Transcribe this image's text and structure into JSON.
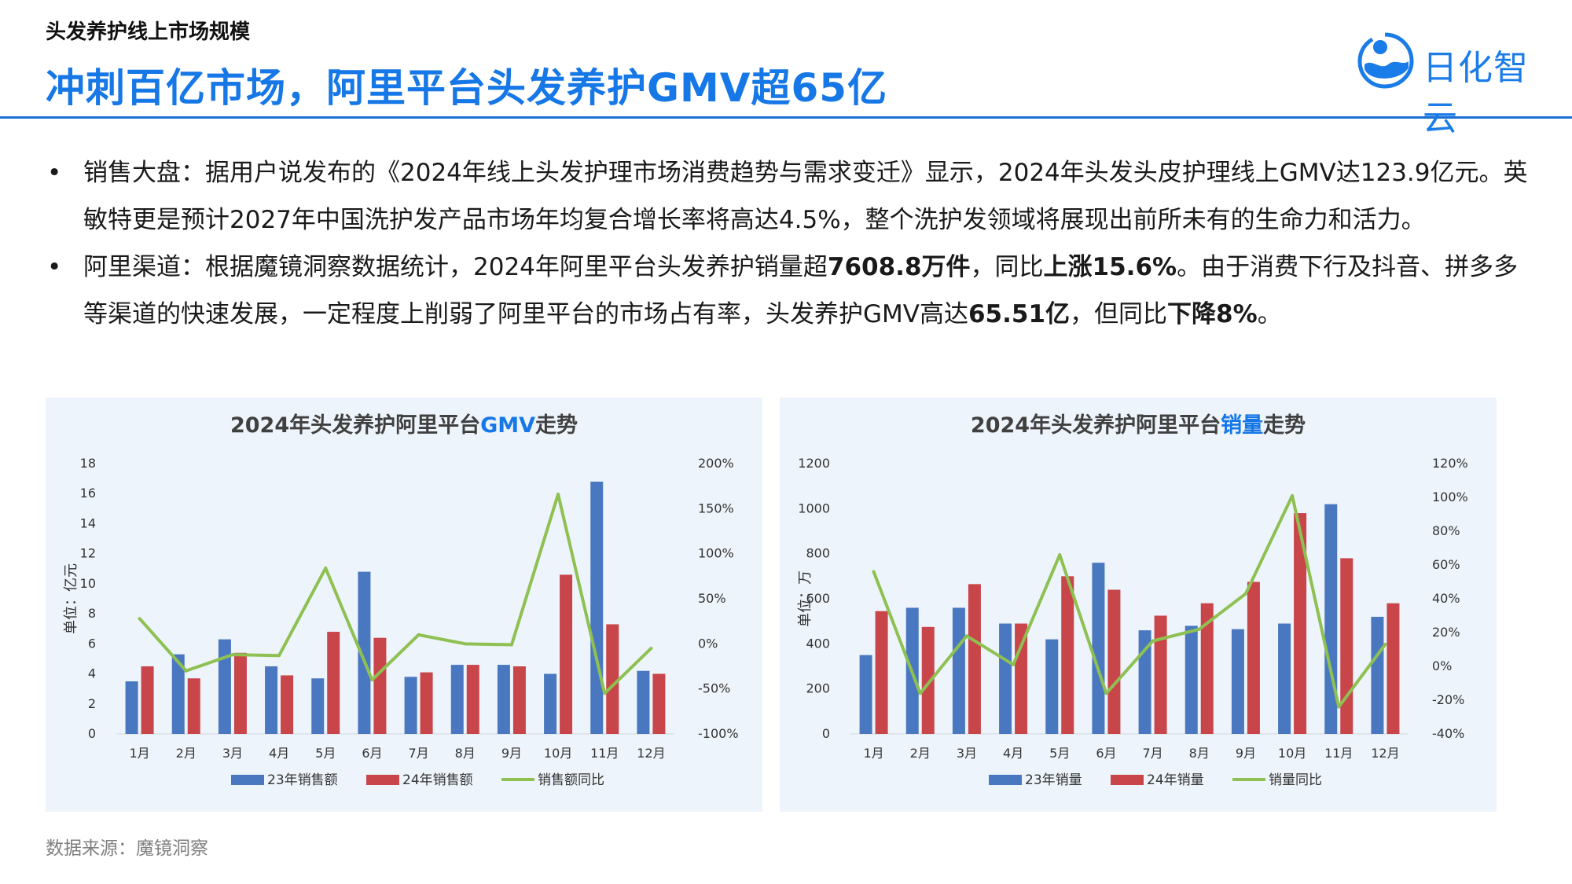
{
  "header": {
    "section_title": "头发养护线上市场规模",
    "main_title": "冲刺百亿市场，阿里平台头发养护GMV超65亿",
    "logo_text": "日化智云"
  },
  "bullets": [
    {
      "marker": "•",
      "segments": [
        {
          "text": "销售大盘：据用户说发布的《2024年线上头发护理市场消费趋势与需求变迁》显示，2024年头发头皮护理线上GMV达123.9亿元。英敏特更是预计2027年中国洗护发产品市场年均复合增长率将高达4.5%，整个洗护发领域将展现出前所未有的生命力和活力。",
          "bold": false
        }
      ]
    },
    {
      "marker": "•",
      "segments": [
        {
          "text": "阿里渠道：根据魔镜洞察数据统计，2024年阿里平台头发养护销量超",
          "bold": false
        },
        {
          "text": "7608.8万件",
          "bold": true
        },
        {
          "text": "，同比",
          "bold": false
        },
        {
          "text": "上涨15.6%",
          "bold": true
        },
        {
          "text": "。由于消费下行及抖音、拼多多等渠道的快速发展，一定程度上削弱了阿里平台的市场占有率，头发养护GMV高达",
          "bold": false
        },
        {
          "text": "65.51亿",
          "bold": true
        },
        {
          "text": "，但同比",
          "bold": false
        },
        {
          "text": "下降8%",
          "bold": true
        },
        {
          "text": "。",
          "bold": false
        }
      ]
    }
  ],
  "colors": {
    "title_blue": "#1677e6",
    "bar_2023": "#4a78c0",
    "bar_2024": "#c8454a",
    "line_yoy": "#8ec052"
  },
  "chart_data": [
    {
      "type": "bar",
      "title_prefix": "2024年头发养护阿里平台",
      "title_highlight": "GMV",
      "title_suffix": "走势",
      "ylabel": "单位：亿元",
      "categories": [
        "1月",
        "2月",
        "3月",
        "4月",
        "5月",
        "6月",
        "7月",
        "8月",
        "9月",
        "10月",
        "11月",
        "12月"
      ],
      "ylim": [
        0,
        18
      ],
      "yticks": [
        0,
        2,
        4,
        6,
        8,
        10,
        12,
        14,
        16,
        18
      ],
      "y2lim": [
        -100,
        200
      ],
      "y2ticks": [
        "-100%",
        "-50%",
        "0%",
        "50%",
        "100%",
        "150%",
        "200%"
      ],
      "series": [
        {
          "name": "23年销售额",
          "kind": "bar",
          "axis": "left",
          "values": [
            3.5,
            5.3,
            6.3,
            4.5,
            3.7,
            10.8,
            3.8,
            4.6,
            4.6,
            4.0,
            16.8,
            4.2
          ]
        },
        {
          "name": "24年销售额",
          "kind": "bar",
          "axis": "left",
          "values": [
            4.5,
            3.7,
            5.4,
            3.9,
            6.8,
            6.4,
            4.1,
            4.6,
            4.5,
            10.6,
            7.3,
            4.0
          ]
        },
        {
          "name": "销售额同比",
          "kind": "line",
          "axis": "right",
          "values": [
            28,
            -30,
            -12,
            -13,
            84,
            -40,
            10,
            0,
            -1,
            166,
            -55,
            -5
          ]
        }
      ],
      "legend": "bottom"
    },
    {
      "type": "bar",
      "title_prefix": "2024年头发养护阿里平台",
      "title_highlight": "销量",
      "title_suffix": "走势",
      "ylabel": "单位：万",
      "categories": [
        "1月",
        "2月",
        "3月",
        "4月",
        "5月",
        "6月",
        "7月",
        "8月",
        "9月",
        "10月",
        "11月",
        "12月"
      ],
      "ylim": [
        0,
        1200
      ],
      "yticks": [
        0,
        200,
        400,
        600,
        800,
        1000,
        1200
      ],
      "y2lim": [
        -40,
        120
      ],
      "y2ticks": [
        "-40%",
        "-20%",
        "0%",
        "20%",
        "40%",
        "60%",
        "80%",
        "100%",
        "120%"
      ],
      "series": [
        {
          "name": "23年销量",
          "kind": "bar",
          "axis": "left",
          "values": [
            350,
            560,
            560,
            490,
            420,
            760,
            460,
            480,
            465,
            490,
            1020,
            520
          ]
        },
        {
          "name": "24年销量",
          "kind": "bar",
          "axis": "left",
          "values": [
            545,
            475,
            665,
            490,
            700,
            640,
            525,
            580,
            675,
            980,
            780,
            580
          ]
        },
        {
          "name": "销量同比",
          "kind": "line",
          "axis": "right",
          "values": [
            56,
            -16,
            18,
            1,
            66,
            -16,
            15,
            22,
            43,
            101,
            -24,
            13
          ]
        }
      ],
      "legend": "bottom"
    }
  ],
  "footer": {
    "source": "数据来源：魔镜洞察"
  }
}
